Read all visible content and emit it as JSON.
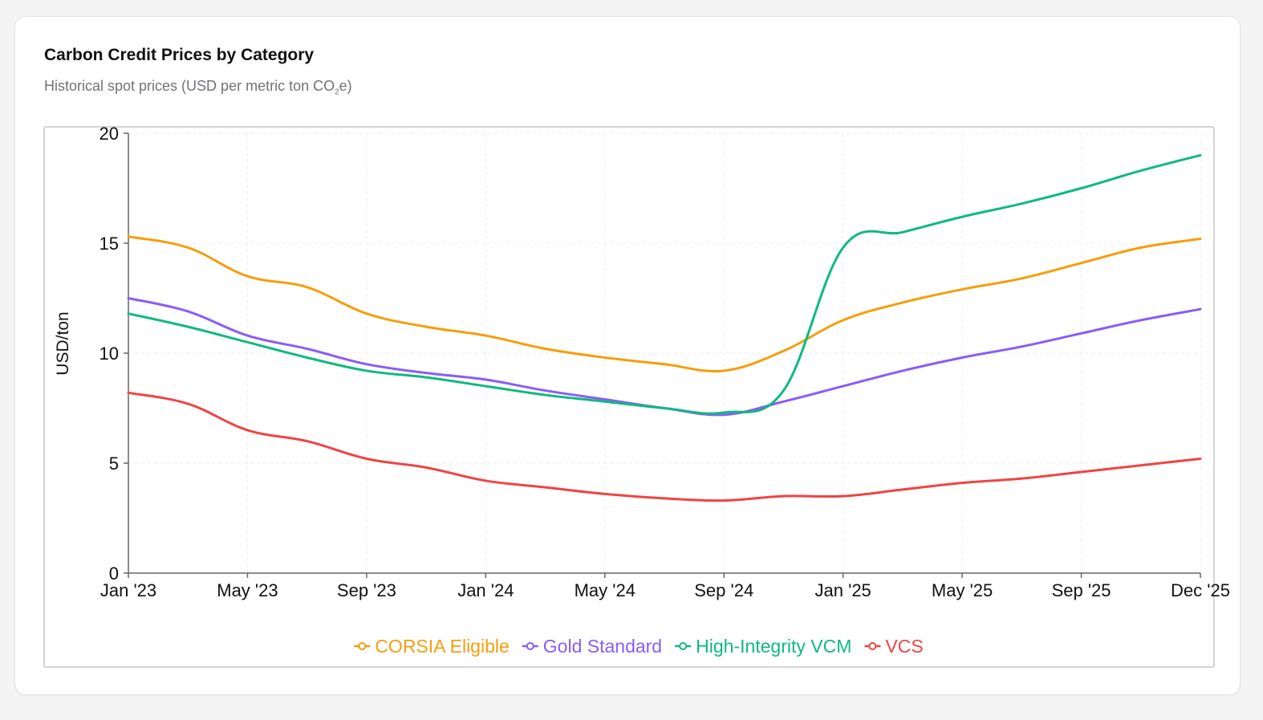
{
  "card": {
    "title": "Carbon Credit Prices by Category",
    "subtitle_prefix": "Historical spot prices (USD per metric ton CO",
    "subtitle_sub": "2",
    "subtitle_suffix": "e)"
  },
  "chart_data": {
    "type": "line",
    "title": "Carbon Credit Prices by Category",
    "xlabel": "",
    "ylabel": "USD/ton",
    "ylim": [
      0,
      20
    ],
    "yticks": [
      0,
      5,
      10,
      15,
      20
    ],
    "grid": true,
    "legend_position": "bottom-center",
    "x": [
      "Jan '23",
      "Mar '23",
      "May '23",
      "Jul '23",
      "Sep '23",
      "Nov '23",
      "Jan '24",
      "Mar '24",
      "May '24",
      "Jul '24",
      "Sep '24",
      "Nov '24",
      "Jan '25",
      "Mar '25",
      "May '25",
      "Jul '25",
      "Sep '25",
      "Nov '25",
      "Dec '25"
    ],
    "xticks": [
      "Jan '23",
      "May '23",
      "Sep '23",
      "Jan '24",
      "May '24",
      "Sep '24",
      "Jan '25",
      "May '25",
      "Sep '25",
      "Dec '25"
    ],
    "series": [
      {
        "name": "CORSIA Eligible",
        "color": "#f59e0b",
        "values": [
          15.3,
          14.8,
          13.5,
          13.0,
          11.8,
          11.2,
          10.8,
          10.2,
          9.8,
          9.5,
          9.2,
          10.1,
          11.5,
          12.3,
          12.9,
          13.4,
          14.1,
          14.8,
          15.2
        ]
      },
      {
        "name": "Gold Standard",
        "color": "#8b5cf6",
        "values": [
          12.5,
          11.9,
          10.8,
          10.2,
          9.5,
          9.1,
          8.8,
          8.3,
          7.9,
          7.5,
          7.2,
          7.8,
          8.5,
          9.2,
          9.8,
          10.3,
          10.9,
          11.5,
          12.0
        ]
      },
      {
        "name": "High-Integrity VCM",
        "color": "#10b981",
        "values": [
          11.8,
          11.2,
          10.5,
          9.8,
          9.2,
          8.9,
          8.5,
          8.1,
          7.8,
          7.5,
          7.3,
          8.3,
          14.8,
          15.5,
          16.2,
          16.8,
          17.5,
          18.3,
          19.0
        ]
      },
      {
        "name": "VCS",
        "color": "#ef4444",
        "values": [
          8.2,
          7.7,
          6.5,
          6.0,
          5.2,
          4.8,
          4.2,
          3.9,
          3.6,
          3.4,
          3.3,
          3.5,
          3.5,
          3.8,
          4.1,
          4.3,
          4.6,
          4.9,
          5.2
        ]
      }
    ]
  }
}
